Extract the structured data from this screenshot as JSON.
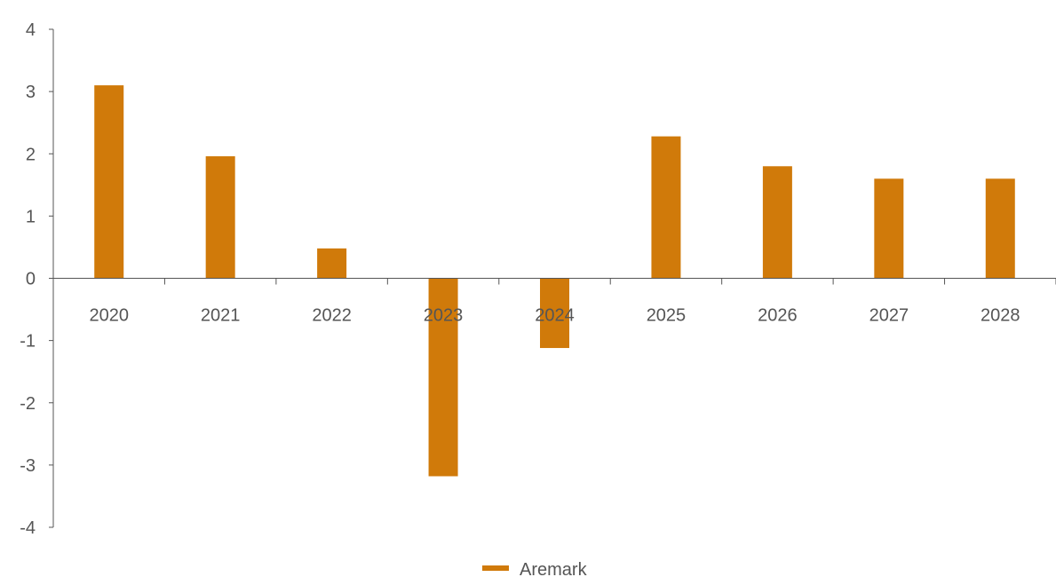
{
  "chart_data": {
    "type": "bar",
    "categories": [
      "2020",
      "2021",
      "2022",
      "2023",
      "2024",
      "2025",
      "2026",
      "2027",
      "2028"
    ],
    "series": [
      {
        "name": "Aremark",
        "color": "#d07a0a",
        "values": [
          3.1,
          1.96,
          0.48,
          -3.18,
          -1.12,
          2.28,
          1.8,
          1.6,
          1.6
        ]
      }
    ],
    "y_ticks": [
      "4",
      "3",
      "2",
      "1",
      "0",
      "-1",
      "-2",
      "-3",
      "-4"
    ],
    "ylim": [
      -4,
      4
    ],
    "grid": false,
    "legend_position": "bottom-center"
  }
}
